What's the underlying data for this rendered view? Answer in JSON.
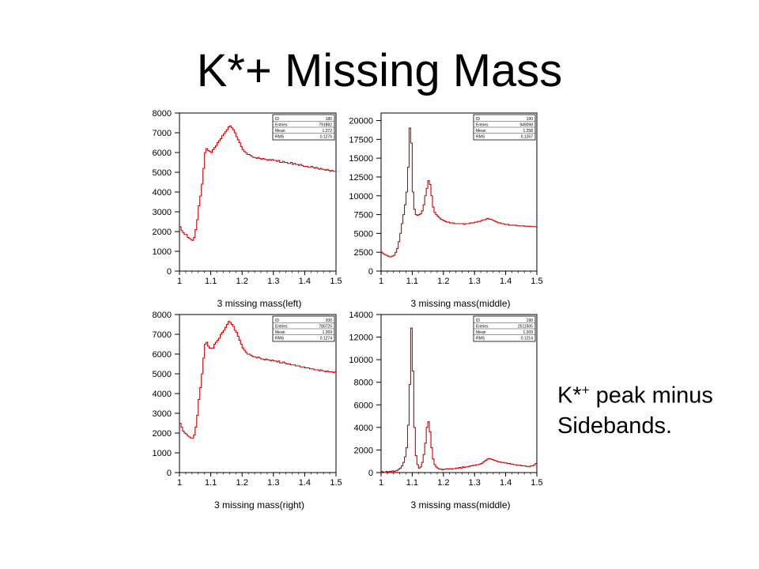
{
  "slide": {
    "title": "K*+ Missing Mass",
    "caption_main": "K*",
    "caption_sup": "+",
    "caption_rest": " peak minus",
    "caption_line2": "Sidebands."
  },
  "colors": {
    "histogram": "#cc0000",
    "axes": "#000000"
  },
  "chart_data": [
    {
      "type": "line",
      "step": true,
      "xlabel": "3 missing mass(left)",
      "xlim": [
        1,
        1.5
      ],
      "ylim": [
        0,
        8000
      ],
      "xticks": [
        1,
        1.1,
        1.2,
        1.3,
        1.4,
        1.5
      ],
      "xtick_labels": [
        "1",
        "1.1",
        "1.2",
        "1.3",
        "1.4",
        "1.5"
      ],
      "yticks": [
        0,
        1000,
        2000,
        3000,
        4000,
        5000,
        6000,
        7000,
        8000
      ],
      "stats": [
        [
          "ID",
          "180"
        ],
        [
          "Entries",
          "791882"
        ],
        [
          "Mean",
          "1.272"
        ],
        [
          "RMS",
          "0.1276"
        ]
      ],
      "x": [
        1.0,
        1.005,
        1.01,
        1.015,
        1.02,
        1.025,
        1.03,
        1.035,
        1.04,
        1.045,
        1.05,
        1.055,
        1.06,
        1.065,
        1.07,
        1.075,
        1.08,
        1.085,
        1.09,
        1.095,
        1.1,
        1.105,
        1.11,
        1.115,
        1.12,
        1.125,
        1.13,
        1.135,
        1.14,
        1.145,
        1.15,
        1.155,
        1.16,
        1.165,
        1.17,
        1.175,
        1.18,
        1.185,
        1.19,
        1.195,
        1.2,
        1.205,
        1.21,
        1.215,
        1.22,
        1.225,
        1.23,
        1.235,
        1.24,
        1.245,
        1.25,
        1.255,
        1.26,
        1.265,
        1.27,
        1.275,
        1.28,
        1.285,
        1.29,
        1.295,
        1.3,
        1.305,
        1.31,
        1.315,
        1.32,
        1.325,
        1.33,
        1.335,
        1.34,
        1.345,
        1.35,
        1.355,
        1.36,
        1.365,
        1.37,
        1.375,
        1.38,
        1.385,
        1.39,
        1.395,
        1.4,
        1.405,
        1.41,
        1.415,
        1.42,
        1.425,
        1.43,
        1.435,
        1.44,
        1.445,
        1.45,
        1.455,
        1.46,
        1.465,
        1.47,
        1.475,
        1.48,
        1.485,
        1.49,
        1.495
      ],
      "values": [
        2250,
        2050,
        1950,
        1850,
        1850,
        1700,
        1650,
        1600,
        1550,
        1700,
        2100,
        2600,
        3300,
        3800,
        4400,
        5200,
        6000,
        6200,
        6100,
        6050,
        6000,
        6150,
        6250,
        6350,
        6500,
        6600,
        6700,
        6850,
        6950,
        7050,
        7150,
        7300,
        7350,
        7250,
        7150,
        7000,
        6800,
        6650,
        6500,
        6300,
        6150,
        6050,
        6000,
        5900,
        5900,
        5850,
        5800,
        5750,
        5750,
        5700,
        5750,
        5700,
        5650,
        5700,
        5650,
        5650,
        5600,
        5650,
        5600,
        5650,
        5600,
        5600,
        5550,
        5600,
        5500,
        5500,
        5550,
        5500,
        5500,
        5450,
        5450,
        5500,
        5400,
        5450,
        5400,
        5400,
        5350,
        5400,
        5350,
        5300,
        5300,
        5300,
        5250,
        5250,
        5300,
        5250,
        5200,
        5250,
        5200,
        5150,
        5200,
        5150,
        5150,
        5100,
        5150,
        5100,
        5050,
        5100,
        5050,
        5050
      ]
    },
    {
      "type": "line",
      "step": true,
      "xlabel": "3 missing mass(middle)",
      "xlim": [
        1,
        1.5
      ],
      "ylim": [
        0,
        21000
      ],
      "xticks": [
        1,
        1.1,
        1.2,
        1.3,
        1.4,
        1.5
      ],
      "xtick_labels": [
        "1",
        "1.1",
        "1.2",
        "1.3",
        "1.4",
        "1.5"
      ],
      "yticks": [
        0,
        2500,
        5000,
        7500,
        10000,
        12500,
        15000,
        17500,
        20000
      ],
      "stats": [
        [
          "ID",
          "190"
        ],
        [
          "Entries",
          "949098"
        ],
        [
          "Mean",
          "1.258"
        ],
        [
          "RMS",
          "0.1267"
        ]
      ],
      "x": [
        1.0,
        1.005,
        1.01,
        1.015,
        1.02,
        1.025,
        1.03,
        1.035,
        1.04,
        1.045,
        1.05,
        1.055,
        1.06,
        1.065,
        1.07,
        1.075,
        1.08,
        1.085,
        1.09,
        1.095,
        1.1,
        1.105,
        1.11,
        1.115,
        1.12,
        1.125,
        1.13,
        1.135,
        1.14,
        1.145,
        1.15,
        1.155,
        1.16,
        1.165,
        1.17,
        1.175,
        1.18,
        1.185,
        1.19,
        1.195,
        1.2,
        1.205,
        1.21,
        1.215,
        1.22,
        1.225,
        1.23,
        1.235,
        1.24,
        1.245,
        1.25,
        1.255,
        1.26,
        1.265,
        1.27,
        1.275,
        1.28,
        1.285,
        1.29,
        1.295,
        1.3,
        1.305,
        1.31,
        1.315,
        1.32,
        1.325,
        1.33,
        1.335,
        1.34,
        1.345,
        1.35,
        1.355,
        1.36,
        1.365,
        1.37,
        1.375,
        1.38,
        1.385,
        1.39,
        1.395,
        1.4,
        1.405,
        1.41,
        1.415,
        1.42,
        1.425,
        1.43,
        1.435,
        1.44,
        1.445,
        1.45,
        1.455,
        1.46,
        1.465,
        1.47,
        1.475,
        1.48,
        1.485,
        1.49,
        1.495
      ],
      "values": [
        2500,
        2300,
        2200,
        2100,
        2000,
        1900,
        1900,
        2000,
        2100,
        2500,
        3000,
        3900,
        5000,
        6300,
        7500,
        8800,
        10500,
        13800,
        19000,
        17000,
        10500,
        8200,
        7500,
        7400,
        7500,
        7600,
        8000,
        8800,
        10000,
        11000,
        12000,
        11500,
        10000,
        8500,
        7800,
        7500,
        7300,
        7100,
        6900,
        6800,
        6700,
        6600,
        6500,
        6500,
        6400,
        6400,
        6400,
        6300,
        6300,
        6300,
        6300,
        6300,
        6300,
        6200,
        6300,
        6300,
        6300,
        6400,
        6400,
        6400,
        6500,
        6500,
        6600,
        6600,
        6700,
        6800,
        6800,
        6900,
        7000,
        6900,
        6900,
        6800,
        6700,
        6600,
        6500,
        6400,
        6400,
        6300,
        6300,
        6200,
        6200,
        6200,
        6100,
        6100,
        6100,
        6100,
        6100,
        6000,
        6000,
        6000,
        6000,
        6000,
        5950,
        5950,
        5950,
        5950,
        5900,
        5900,
        5900,
        5900
      ]
    },
    {
      "type": "line",
      "step": true,
      "xlabel": "3 missing mass(right)",
      "xlim": [
        1,
        1.5
      ],
      "ylim": [
        0,
        8000
      ],
      "xticks": [
        1,
        1.1,
        1.2,
        1.3,
        1.4,
        1.5
      ],
      "xtick_labels": [
        "1",
        "1.1",
        "1.2",
        "1.3",
        "1.4",
        "1.5"
      ],
      "yticks": [
        0,
        1000,
        2000,
        3000,
        4000,
        5000,
        6000,
        7000,
        8000
      ],
      "stats": [
        [
          "ID",
          "200"
        ],
        [
          "Entries",
          "780725"
        ],
        [
          "Mean",
          "1.269"
        ],
        [
          "RMS",
          "0.1274"
        ]
      ],
      "x": [
        1.0,
        1.005,
        1.01,
        1.015,
        1.02,
        1.025,
        1.03,
        1.035,
        1.04,
        1.045,
        1.05,
        1.055,
        1.06,
        1.065,
        1.07,
        1.075,
        1.08,
        1.085,
        1.09,
        1.095,
        1.1,
        1.105,
        1.11,
        1.115,
        1.12,
        1.125,
        1.13,
        1.135,
        1.14,
        1.145,
        1.15,
        1.155,
        1.16,
        1.165,
        1.17,
        1.175,
        1.18,
        1.185,
        1.19,
        1.195,
        1.2,
        1.205,
        1.21,
        1.215,
        1.22,
        1.225,
        1.23,
        1.235,
        1.24,
        1.245,
        1.25,
        1.255,
        1.26,
        1.265,
        1.27,
        1.275,
        1.28,
        1.285,
        1.29,
        1.295,
        1.3,
        1.305,
        1.31,
        1.315,
        1.32,
        1.325,
        1.33,
        1.335,
        1.34,
        1.345,
        1.35,
        1.355,
        1.36,
        1.365,
        1.37,
        1.375,
        1.38,
        1.385,
        1.39,
        1.395,
        1.4,
        1.405,
        1.41,
        1.415,
        1.42,
        1.425,
        1.43,
        1.435,
        1.44,
        1.445,
        1.45,
        1.455,
        1.46,
        1.465,
        1.47,
        1.475,
        1.48,
        1.485,
        1.49,
        1.495
      ],
      "values": [
        2500,
        2300,
        2100,
        2000,
        1950,
        1850,
        1800,
        1750,
        1750,
        1900,
        2300,
        2900,
        3700,
        4300,
        5000,
        5800,
        6500,
        6600,
        6400,
        6300,
        6300,
        6300,
        6500,
        6600,
        6700,
        6800,
        7000,
        7100,
        7200,
        7350,
        7500,
        7650,
        7600,
        7500,
        7400,
        7200,
        7100,
        6900,
        6700,
        6500,
        6300,
        6200,
        6100,
        6000,
        6000,
        5950,
        5900,
        5850,
        5850,
        5800,
        5850,
        5800,
        5750,
        5750,
        5700,
        5750,
        5700,
        5700,
        5650,
        5700,
        5650,
        5650,
        5600,
        5650,
        5550,
        5550,
        5600,
        5550,
        5500,
        5500,
        5500,
        5450,
        5450,
        5450,
        5400,
        5400,
        5400,
        5350,
        5350,
        5350,
        5300,
        5300,
        5300,
        5250,
        5250,
        5250,
        5200,
        5200,
        5200,
        5150,
        5200,
        5150,
        5150,
        5100,
        5150,
        5100,
        5100,
        5100,
        5050,
        5100
      ]
    },
    {
      "type": "line",
      "step": true,
      "xlabel": "3 missing mass(middle)",
      "xlim": [
        1,
        1.5
      ],
      "ylim": [
        0,
        14000
      ],
      "xticks": [
        1,
        1.1,
        1.2,
        1.3,
        1.4,
        1.5
      ],
      "xtick_labels": [
        "1",
        "1.1",
        "1.2",
        "1.3",
        "1.4",
        "1.5"
      ],
      "yticks": [
        0,
        2000,
        4000,
        6000,
        8000,
        10000,
        12000,
        14000
      ],
      "stats": [
        [
          "ID",
          "190"
        ],
        [
          "Entries",
          "2511505"
        ],
        [
          "Mean",
          "1.209"
        ],
        [
          "RMS",
          "0.1214"
        ]
      ],
      "x": [
        1.0,
        1.005,
        1.01,
        1.015,
        1.02,
        1.025,
        1.03,
        1.035,
        1.04,
        1.045,
        1.05,
        1.055,
        1.06,
        1.065,
        1.07,
        1.075,
        1.08,
        1.085,
        1.09,
        1.095,
        1.1,
        1.105,
        1.11,
        1.115,
        1.12,
        1.125,
        1.13,
        1.135,
        1.14,
        1.145,
        1.15,
        1.155,
        1.16,
        1.165,
        1.17,
        1.175,
        1.18,
        1.185,
        1.19,
        1.195,
        1.2,
        1.205,
        1.21,
        1.215,
        1.22,
        1.225,
        1.23,
        1.235,
        1.24,
        1.245,
        1.25,
        1.255,
        1.26,
        1.265,
        1.27,
        1.275,
        1.28,
        1.285,
        1.29,
        1.295,
        1.3,
        1.305,
        1.31,
        1.315,
        1.32,
        1.325,
        1.33,
        1.335,
        1.34,
        1.345,
        1.35,
        1.355,
        1.36,
        1.365,
        1.37,
        1.375,
        1.38,
        1.385,
        1.39,
        1.395,
        1.4,
        1.405,
        1.41,
        1.415,
        1.42,
        1.425,
        1.43,
        1.435,
        1.44,
        1.445,
        1.45,
        1.455,
        1.46,
        1.465,
        1.47,
        1.475,
        1.48,
        1.485,
        1.49,
        1.495
      ],
      "values": [
        100,
        50,
        0,
        100,
        50,
        100,
        100,
        150,
        100,
        150,
        200,
        300,
        400,
        600,
        900,
        1400,
        2200,
        4200,
        7800,
        12800,
        9000,
        4000,
        1500,
        700,
        400,
        500,
        900,
        1600,
        2600,
        4000,
        4500,
        3600,
        2200,
        1200,
        700,
        500,
        400,
        300,
        300,
        250,
        300,
        300,
        350,
        300,
        350,
        300,
        350,
        350,
        400,
        400,
        450,
        400,
        500,
        450,
        500,
        500,
        550,
        600,
        600,
        650,
        650,
        700,
        700,
        750,
        800,
        900,
        1000,
        1100,
        1200,
        1250,
        1200,
        1150,
        1100,
        1050,
        1000,
        950,
        950,
        900,
        900,
        850,
        850,
        800,
        800,
        750,
        750,
        700,
        700,
        650,
        650,
        650,
        600,
        600,
        600,
        550,
        550,
        550,
        600,
        600,
        700,
        800
      ]
    }
  ]
}
